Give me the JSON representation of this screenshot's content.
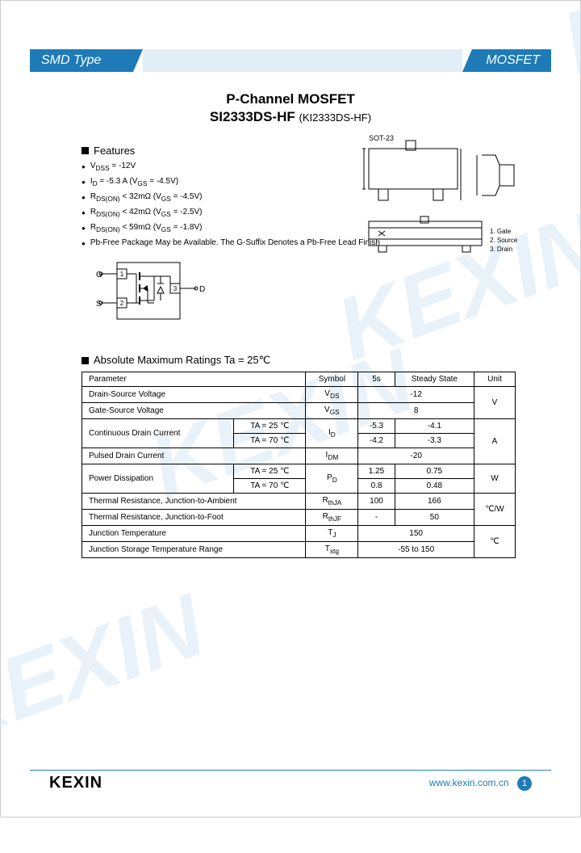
{
  "header": {
    "left": "SMD Type",
    "right": "MOSFET"
  },
  "title": {
    "line1": "P-Channel MOSFET",
    "part": "SI2333DS-HF",
    "alt": "(KI2333DS-HF)"
  },
  "features": {
    "heading": "Features",
    "items": [
      "V<sub>DSS</sub> = -12V",
      "I<sub>D</sub> = -5.3 A (V<sub>GS</sub> = -4.5V)",
      "R<sub>DS(ON)</sub> < 32mΩ (V<sub>GS</sub> = -4.5V)",
      "R<sub>DS(ON)</sub> < 42mΩ (V<sub>GS</sub> = -2.5V)",
      "R<sub>DS(ON)</sub> < 59mΩ (V<sub>GS</sub> = -1.8V)",
      "Pb-Free Package May be Available. The G-Suffix Denotes a Pb-Free Lead Finish"
    ]
  },
  "package": {
    "label_top": "SOT-23",
    "dim_side": "",
    "pins": [
      "1. Gate",
      "2. Source",
      "3. Drain"
    ]
  },
  "pinout": {
    "G": "G",
    "S": "S",
    "D": "D",
    "p1": "1",
    "p2": "2",
    "p3": "3"
  },
  "ratings": {
    "heading": "Absolute Maximum Ratings Ta = 25℃",
    "cols": [
      "Parameter",
      "Symbol",
      "5s",
      "Steady State",
      "Unit"
    ],
    "rows": [
      {
        "p": "Drain-Source Voltage",
        "s": "V<sub>DS</sub>",
        "v5": "-12",
        "ss": "",
        "u": "V",
        "span_v": true
      },
      {
        "p": "Gate-Source Voltage",
        "s": "V<sub>GS</sub>",
        "v5": "8",
        "ss": "",
        "u": "",
        "span_v": true
      },
      {
        "p": "Continuous Drain Current",
        "sub1": "TA = 25 ℃",
        "sub2": "TA = 70 ℃",
        "s": "I<sub>D</sub>",
        "r1_5": "-5.3",
        "r1_ss": "-4.1",
        "r2_5": "-4.2",
        "r2_ss": "-3.3",
        "u": "A"
      },
      {
        "p": "Pulsed Drain Current",
        "s": "I<sub>DM</sub>",
        "v5": "-20",
        "ss": "",
        "u": "",
        "span_v": true
      },
      {
        "p": "Power Dissipation",
        "sub1": "TA = 25 ℃",
        "sub2": "TA = 70 ℃",
        "s": "P<sub>D</sub>",
        "r1_5": "1.25",
        "r1_ss": "0.75",
        "r2_5": "0.8",
        "r2_ss": "0.48",
        "u": "W"
      },
      {
        "p": "Thermal Resistance, Junction-to-Ambient",
        "s": "R<sub>thJA</sub>",
        "v5": "100",
        "ss": "166",
        "u": "℃/W"
      },
      {
        "p": "Thermal Resistance, Junction-to-Foot",
        "s": "R<sub>thJF</sub>",
        "v5": "-",
        "ss": "50",
        "u": ""
      },
      {
        "p": "Junction Temperature",
        "s": "T<sub>J</sub>",
        "v5": "150",
        "ss": "",
        "u": "℃",
        "span_v": true
      },
      {
        "p": "Junction Storage Temperature Range",
        "s": "T<sub>stg</sub>",
        "v5": "-55 to 150",
        "ss": "",
        "u": "",
        "span_v": true
      }
    ]
  },
  "footer": {
    "logo": "KEXIN",
    "url": "www.kexin.com.cn",
    "page": "1"
  },
  "colors": {
    "brand": "#1e7bb8",
    "wm": "#d6e6f4"
  }
}
